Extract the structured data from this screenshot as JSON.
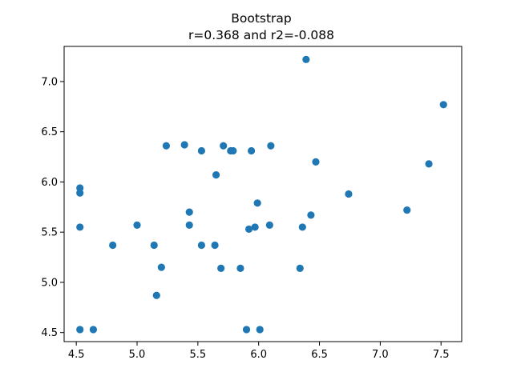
{
  "chart_data": {
    "type": "scatter",
    "title": "Bootstrap",
    "subtitle": "r=0.368 and r2=-0.088",
    "xlabel": "",
    "ylabel": "",
    "xlim": [
      4.4,
      7.67
    ],
    "ylim": [
      4.41,
      7.35
    ],
    "xticks": [
      4.5,
      5.0,
      5.5,
      6.0,
      6.5,
      7.0,
      7.5
    ],
    "xtick_labels": [
      "4.5",
      "5.0",
      "5.5",
      "6.0",
      "6.5",
      "7.0",
      "7.5"
    ],
    "yticks": [
      4.5,
      5.0,
      5.5,
      6.0,
      6.5,
      7.0
    ],
    "ytick_labels": [
      "4.5",
      "5.0",
      "5.5",
      "6.0",
      "6.5",
      "7.0"
    ],
    "grid": false,
    "marker_color": "#1f77b4",
    "points": [
      {
        "x": 6.39,
        "y": 7.22
      },
      {
        "x": 7.52,
        "y": 6.77
      },
      {
        "x": 5.24,
        "y": 6.36
      },
      {
        "x": 5.39,
        "y": 6.37
      },
      {
        "x": 5.53,
        "y": 6.31
      },
      {
        "x": 5.71,
        "y": 6.36
      },
      {
        "x": 5.77,
        "y": 6.31
      },
      {
        "x": 5.79,
        "y": 6.31
      },
      {
        "x": 5.94,
        "y": 6.31
      },
      {
        "x": 6.1,
        "y": 6.36
      },
      {
        "x": 6.47,
        "y": 6.2
      },
      {
        "x": 7.4,
        "y": 6.18
      },
      {
        "x": 5.65,
        "y": 6.07
      },
      {
        "x": 4.53,
        "y": 5.94
      },
      {
        "x": 4.53,
        "y": 5.89
      },
      {
        "x": 6.74,
        "y": 5.88
      },
      {
        "x": 5.99,
        "y": 5.79
      },
      {
        "x": 7.22,
        "y": 5.72
      },
      {
        "x": 5.43,
        "y": 5.7
      },
      {
        "x": 6.43,
        "y": 5.67
      },
      {
        "x": 5.0,
        "y": 5.57
      },
      {
        "x": 5.43,
        "y": 5.57
      },
      {
        "x": 6.09,
        "y": 5.57
      },
      {
        "x": 4.53,
        "y": 5.55
      },
      {
        "x": 5.97,
        "y": 5.55
      },
      {
        "x": 6.36,
        "y": 5.55
      },
      {
        "x": 5.92,
        "y": 5.53
      },
      {
        "x": 4.8,
        "y": 5.37
      },
      {
        "x": 5.14,
        "y": 5.37
      },
      {
        "x": 5.53,
        "y": 5.37
      },
      {
        "x": 5.64,
        "y": 5.37
      },
      {
        "x": 5.2,
        "y": 5.15
      },
      {
        "x": 5.69,
        "y": 5.14
      },
      {
        "x": 5.85,
        "y": 5.14
      },
      {
        "x": 6.34,
        "y": 5.14
      },
      {
        "x": 5.16,
        "y": 4.87
      },
      {
        "x": 4.53,
        "y": 4.53
      },
      {
        "x": 4.64,
        "y": 4.53
      },
      {
        "x": 5.9,
        "y": 4.53
      },
      {
        "x": 6.01,
        "y": 4.53
      }
    ]
  }
}
